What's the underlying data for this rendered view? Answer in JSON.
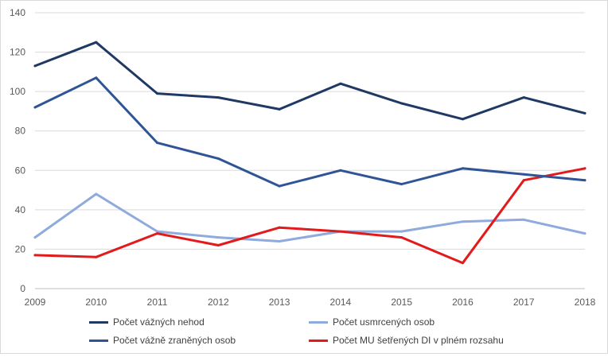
{
  "chart_data": {
    "type": "line",
    "x": [
      "2009",
      "2010",
      "2011",
      "2012",
      "2013",
      "2014",
      "2015",
      "2016",
      "2017",
      "2018"
    ],
    "ylim": [
      0,
      140
    ],
    "yticks": [
      0,
      20,
      40,
      60,
      80,
      100,
      120,
      140
    ],
    "grid": true,
    "legend_position": "bottom",
    "series": [
      {
        "name": "Počet vážných nehod",
        "color": "#1f3864",
        "values": [
          113,
          125,
          99,
          97,
          91,
          104,
          94,
          86,
          97,
          89
        ]
      },
      {
        "name": "Počet usmrcených osob",
        "color": "#8faadc",
        "values": [
          26,
          48,
          29,
          26,
          24,
          29,
          29,
          34,
          35,
          28
        ]
      },
      {
        "name": "Počet vážně zraněných osob",
        "color": "#2f5597",
        "values": [
          92,
          107,
          74,
          66,
          52,
          60,
          53,
          61,
          58,
          55
        ]
      },
      {
        "name": "Počet MU šetřených DI v plném rozsahu",
        "color": "#e31a1c",
        "values": [
          17,
          16,
          28,
          22,
          31,
          29,
          26,
          13,
          55,
          61
        ]
      }
    ]
  }
}
